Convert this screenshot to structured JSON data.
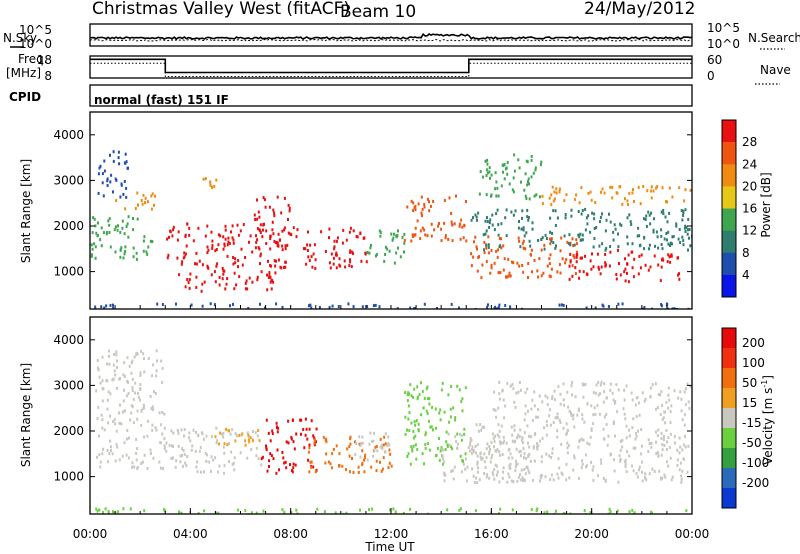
{
  "header": {
    "title": "Christmas Valley West (fitACF)",
    "beam": "Beam 10",
    "date": "24/May/2012"
  },
  "strip_labels": {
    "nsky": "N.Sky",
    "nsearch": "N.Search",
    "freq": "Freq.",
    "freq_unit": "[MHz]",
    "nave": "Nave",
    "cpid": "CPID",
    "cpid_value": "normal (fast) 151 IF"
  },
  "noise_strip": {
    "left_ticks": [
      "10^5",
      "10^0"
    ],
    "right_ticks": [
      "10^5",
      "10^0"
    ]
  },
  "freq_strip": {
    "left_ticks": [
      "18",
      "8"
    ],
    "right_ticks": [
      "60",
      "0"
    ],
    "freq_steps": [
      {
        "start_h": 0,
        "end_h": 3.0,
        "mhz": 16.5
      },
      {
        "start_h": 3.0,
        "end_h": 15.1,
        "mhz": 10.5
      },
      {
        "start_h": 15.1,
        "end_h": 24,
        "mhz": 16.5
      }
    ]
  },
  "chart_data": [
    {
      "type": "heatmap",
      "panel": "power",
      "ylabel": "Slant Range [km]",
      "ylim": [
        180,
        4500
      ],
      "yticks": [
        1000,
        2000,
        3000,
        4000
      ],
      "xlim": [
        0,
        24
      ],
      "colorbar": {
        "label": "Power [dB]",
        "ticks": [
          "4",
          "8",
          "12",
          "16",
          "20",
          "24",
          "28"
        ],
        "colors": [
          "#0a14e6",
          "#1f4fae",
          "#2e7d6e",
          "#3fa650",
          "#e6c818",
          "#f08a10",
          "#f05510",
          "#e81010"
        ]
      },
      "scatter_regions": [
        {
          "start_h": 0.2,
          "end_h": 1.5,
          "low_km": 2600,
          "high_km": 3700,
          "color": "#1f4fae"
        },
        {
          "start_h": 1.0,
          "end_h": 2.6,
          "low_km": 2400,
          "high_km": 2800,
          "color": "#f08a10"
        },
        {
          "start_h": 0.0,
          "end_h": 2.5,
          "low_km": 1300,
          "high_km": 2300,
          "color": "#3fa650"
        },
        {
          "start_h": 3.0,
          "end_h": 7.0,
          "low_km": 1300,
          "high_km": 2100,
          "color": "#e81010"
        },
        {
          "start_h": 3.5,
          "end_h": 7.5,
          "low_km": 600,
          "high_km": 1300,
          "color": "#e81010"
        },
        {
          "start_h": 6.5,
          "end_h": 8.0,
          "low_km": 1600,
          "high_km": 2700,
          "color": "#e81010"
        },
        {
          "start_h": 7.0,
          "end_h": 11.0,
          "low_km": 1100,
          "high_km": 2000,
          "color": "#e81010"
        },
        {
          "start_h": 11.0,
          "end_h": 12.5,
          "low_km": 1200,
          "high_km": 2000,
          "color": "#3fa650"
        },
        {
          "start_h": 4.2,
          "end_h": 5.2,
          "low_km": 2800,
          "high_km": 3100,
          "color": "#f08a10"
        },
        {
          "start_h": 12.5,
          "end_h": 15.0,
          "low_km": 1700,
          "high_km": 2700,
          "color": "#f05510"
        },
        {
          "start_h": 15.1,
          "end_h": 19.5,
          "low_km": 900,
          "high_km": 1800,
          "color": "#f05510"
        },
        {
          "start_h": 19.0,
          "end_h": 23.5,
          "low_km": 800,
          "high_km": 1500,
          "color": "#e81010"
        },
        {
          "start_h": 15.5,
          "end_h": 18.0,
          "low_km": 2600,
          "high_km": 3600,
          "color": "#3fa650"
        },
        {
          "start_h": 18.0,
          "end_h": 24.0,
          "low_km": 2500,
          "high_km": 2900,
          "color": "#f08a10"
        },
        {
          "start_h": 15.1,
          "end_h": 24.0,
          "low_km": 1500,
          "high_km": 2400,
          "color": "#2e7d6e"
        },
        {
          "start_h": 0.0,
          "end_h": 24.0,
          "low_km": 200,
          "high_km": 330,
          "color": "#1f4fae"
        }
      ]
    },
    {
      "type": "heatmap",
      "panel": "velocity",
      "ylabel": "Slant Range [km]",
      "ylim": [
        180,
        4500
      ],
      "yticks": [
        1000,
        2000,
        3000,
        4000
      ],
      "xlim": [
        0,
        24
      ],
      "xticks": [
        "00:00",
        "04:00",
        "08:00",
        "12:00",
        "16:00",
        "20:00",
        "00:00"
      ],
      "xlabel": "Time UT",
      "colorbar": {
        "label": "Velocity [m s",
        "label_sup": "-1",
        "label_end": "]",
        "ticks": [
          "200",
          "100",
          "50",
          "15",
          "-15",
          "-50",
          "-100",
          "-200"
        ],
        "colors": [
          "#0a3ad0",
          "#2a6ab8",
          "#35a040",
          "#6ad040",
          "#c8c8c0",
          "#f0a020",
          "#f07010",
          "#f03010",
          "#e80a0a"
        ]
      },
      "scatter_regions": [
        {
          "start_h": 0.2,
          "end_h": 3.0,
          "low_km": 1200,
          "high_km": 3800,
          "color": "#c8c8c0"
        },
        {
          "start_h": 3.0,
          "end_h": 6.8,
          "low_km": 1100,
          "high_km": 2100,
          "color": "#c8c8c0"
        },
        {
          "start_h": 4.8,
          "end_h": 6.8,
          "low_km": 1700,
          "high_km": 2100,
          "color": "#f0a020"
        },
        {
          "start_h": 6.8,
          "end_h": 9.0,
          "low_km": 1100,
          "high_km": 2300,
          "color": "#e80a0a"
        },
        {
          "start_h": 8.5,
          "end_h": 12.0,
          "low_km": 1100,
          "high_km": 1900,
          "color": "#f07010"
        },
        {
          "start_h": 10.5,
          "end_h": 12.0,
          "low_km": 1300,
          "high_km": 2000,
          "color": "#c8c8c0"
        },
        {
          "start_h": 12.5,
          "end_h": 15.0,
          "low_km": 1300,
          "high_km": 3100,
          "color": "#6ad040"
        },
        {
          "start_h": 14.0,
          "end_h": 17.5,
          "low_km": 900,
          "high_km": 2000,
          "color": "#c8c8c0"
        },
        {
          "start_h": 15.1,
          "end_h": 24.0,
          "low_km": 900,
          "high_km": 2300,
          "color": "#c8c8c0"
        },
        {
          "start_h": 16.0,
          "end_h": 24.0,
          "low_km": 2300,
          "high_km": 3100,
          "color": "#c8c8c0"
        },
        {
          "start_h": 0.0,
          "end_h": 24.0,
          "low_km": 200,
          "high_km": 330,
          "color": "#6ad040"
        }
      ]
    }
  ]
}
